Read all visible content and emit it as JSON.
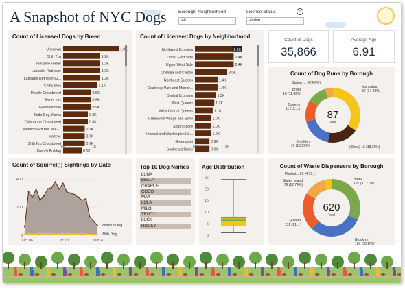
{
  "title": "A Snapshot of NYC Dogs",
  "filters": [
    {
      "label": "Borough, Neighborhood",
      "value": "All"
    },
    {
      "label": "License Status",
      "value": "Active"
    }
  ],
  "kpis": {
    "count_label": "Count of Dogs",
    "count_value": "35,866",
    "age_label": "Average Age",
    "age_value": "6.91"
  },
  "panels": {
    "breed": "Count of Licensed Dogs by Breed",
    "neighborhood": "Count of Licensed Dogs by Neighborhood",
    "runs": "Count of Dog Runs by Borough",
    "squirrel": "Count of Squirrel(!) Sightings by Date",
    "names": "Top 10 Dog Names",
    "age": "Age Distribution",
    "waste": "Count of Waste Dispensers by Borough"
  },
  "colors": {
    "bar": "#5c2b0e",
    "yellow": "#f5c518",
    "gray": "#9e8f87",
    "green": "#7aa84a",
    "blue": "#4a72c4",
    "orange": "#ef5b2c",
    "brown": "#4a2410",
    "peach": "#f2a64a"
  },
  "chart_data": [
    {
      "type": "bar",
      "orientation": "horizontal",
      "title": "Count of Licensed Dogs by Breed",
      "categories": [
        "Unknown",
        "Shih Tzu",
        "Yorkshire Terrier",
        "Labrador Retriever",
        "Labrador Retriever Cr...",
        "Chihuahua",
        "Poodle Crossbreed",
        "Terrier mix",
        "Goldendoodle",
        "Jindo Dog, Korea",
        "Chihuahua Crossbreed",
        "American Pit Bull Mix /...",
        "Maltese",
        "Shih Tzu Crossbreed",
        "French Bulldog"
      ],
      "values": [
        1800,
        1200,
        1200,
        1200,
        1200,
        1100,
        900,
        900,
        900,
        800,
        800,
        700,
        700,
        700,
        600
      ],
      "data_labels": [
        "1.8K",
        "1.2K",
        "1.2K",
        "1.2K",
        "1.2K",
        "1.1K",
        "0.9K",
        "0.9K",
        "0.9K",
        "0.8K",
        "0.8K",
        "0.7K",
        "0.7K",
        "0.7K",
        "0.6K"
      ],
      "x_ticks": [
        "0K",
        "1K"
      ],
      "xlim": [
        0,
        2000
      ]
    },
    {
      "type": "bar",
      "orientation": "horizontal",
      "title": "Count of Licensed Dogs by Neighborhood",
      "categories": [
        "Northwest Brooklyn",
        "Upper East Side",
        "Upper West Side",
        "Chelsea and Clinton",
        "Northeast Queens",
        "Gramercy Park and Murray...",
        "Central Brooklyn",
        "West Queens",
        "West Central Queens",
        "Greenwich Village and Soho",
        "South Shore",
        "Inwood and Washington He...",
        "Greenpoint",
        "Southeast Bronx"
      ],
      "values": [
        2900,
        2400,
        2400,
        2000,
        1400,
        1400,
        1300,
        1200,
        1100,
        1000,
        1000,
        1000,
        900,
        900
      ],
      "data_labels": [
        "2.9K",
        "2.4K",
        "2.4K",
        "2.0K",
        "1.4K",
        "1.4K",
        "1.3K",
        "1.2K",
        "1.1K",
        "1.0K",
        "1.0K",
        "1.0K",
        "0.9K",
        "0.9K"
      ],
      "x_ticks": [
        "0K",
        "2K"
      ],
      "xlim": [
        0,
        3400
      ]
    },
    {
      "type": "pie",
      "donut": true,
      "title": "Count of Dog Runs by Borough",
      "center_value": "87",
      "center_label": "Total",
      "slices": [
        {
          "name": "Manhattan",
          "value": 30,
          "label": "Manhattan\n30 (34.48%)",
          "color": "#f5c518"
        },
        {
          "name": "(Blank)",
          "value": 16,
          "label": "(Blank) 16 (18.39%)",
          "color": "#4a2410"
        },
        {
          "name": "Brooklyn",
          "value": 16,
          "label": "Brooklyn\n16 (18.39%)",
          "color": "#4a72c4"
        },
        {
          "name": "Queens",
          "value": 11,
          "label": "Queens\n11 (12....)",
          "color": "#ef5b2c"
        },
        {
          "name": "Bronx",
          "value": 10,
          "label": "Bronx\n10 (11.49%)",
          "color": "#7aa84a"
        },
        {
          "name": "Staten I...",
          "value": 4,
          "label": "Staten I... 4 (4.6%)",
          "color": "#f2a64a"
        }
      ]
    },
    {
      "type": "area",
      "title": "Count of Squirrel(!) Sightings by Date",
      "x_ticks": [
        "Oct 06",
        "Oct 13",
        "Oct 20"
      ],
      "y_ticks": [
        0,
        200,
        400
      ],
      "ylim": [
        0,
        450
      ],
      "series": [
        {
          "name": "Without Dog",
          "color": "#9e8f87",
          "values": [
            60,
            310,
            270,
            330,
            250,
            280,
            330,
            340,
            380,
            330,
            370,
            310,
            300,
            290,
            270,
            250,
            260,
            130,
            100,
            70
          ]
        },
        {
          "name": "With Dog",
          "color": "#f5c518",
          "values": [
            8,
            12,
            6,
            10,
            14,
            9,
            11,
            13,
            7,
            10,
            12,
            9,
            11,
            8,
            10,
            13,
            9,
            6,
            5,
            4
          ]
        }
      ]
    },
    {
      "type": "table",
      "title": "Top 10 Dog Names",
      "rows": [
        "LUNA",
        "BELLA",
        "CHARLIE",
        "COCO",
        "MAX",
        "LOLA",
        "MILO",
        "TEDDY",
        "LUCY",
        "ROCKY"
      ]
    },
    {
      "type": "box",
      "title": "Age Distribution",
      "y_ticks": [
        0,
        5,
        10,
        15,
        20,
        25
      ],
      "ylim": [
        0,
        26
      ],
      "whisker_low": 1,
      "q1": 4,
      "median": 6,
      "q3": 8,
      "whisker_high": 24
    },
    {
      "type": "pie",
      "donut": true,
      "title": "Count of Waste Dispensers by Borough",
      "center_value": "620",
      "center_label": "Total",
      "slices": [
        {
          "name": "Bronx",
          "value": 197,
          "label": "Bronx\n197 (31.77%)",
          "color": "#7aa84a"
        },
        {
          "name": "Brooklyn",
          "value": 187,
          "label": "Brooklyn\n187 (30.16%)",
          "color": "#4a72c4"
        },
        {
          "name": "Queens",
          "value": 131,
          "label": "Queens\n131 (21....)",
          "color": "#ef5b2c"
        },
        {
          "name": "Staten Island",
          "value": 79,
          "label": "Staten Island\n79 (12.74%)",
          "color": "#f2a64a"
        },
        {
          "name": "Manhat...",
          "value": 26,
          "label": "Manhat... 26 (4.19...)",
          "color": "#f5c518"
        }
      ]
    }
  ]
}
